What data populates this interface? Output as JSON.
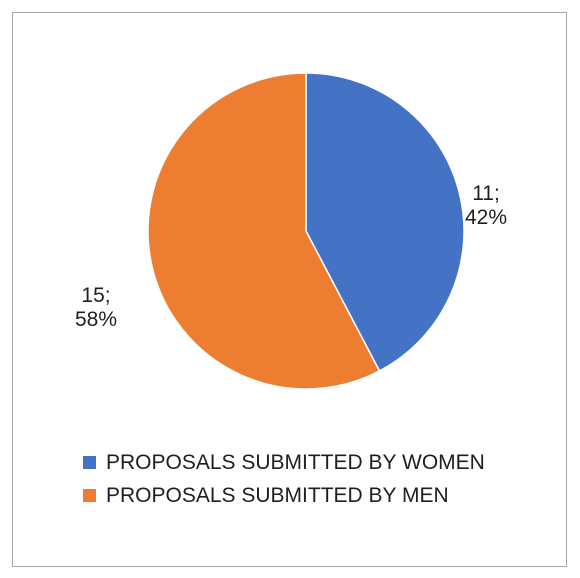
{
  "chart_data": {
    "type": "pie",
    "title": "",
    "series": [
      {
        "name": "PROPOSALS SUBMITTED BY WOMEN",
        "value": 11,
        "percent": "42%",
        "label_value": "11;",
        "label_percent": "42%",
        "color": "#4472c4"
      },
      {
        "name": "PROPOSALS SUBMITTED BY MEN",
        "value": 15,
        "percent": "58%",
        "label_value": "15;",
        "label_percent": "58%",
        "color": "#ed7d31"
      }
    ],
    "legend_position": "bottom",
    "start_angle": "12 o'clock, clockwise"
  }
}
